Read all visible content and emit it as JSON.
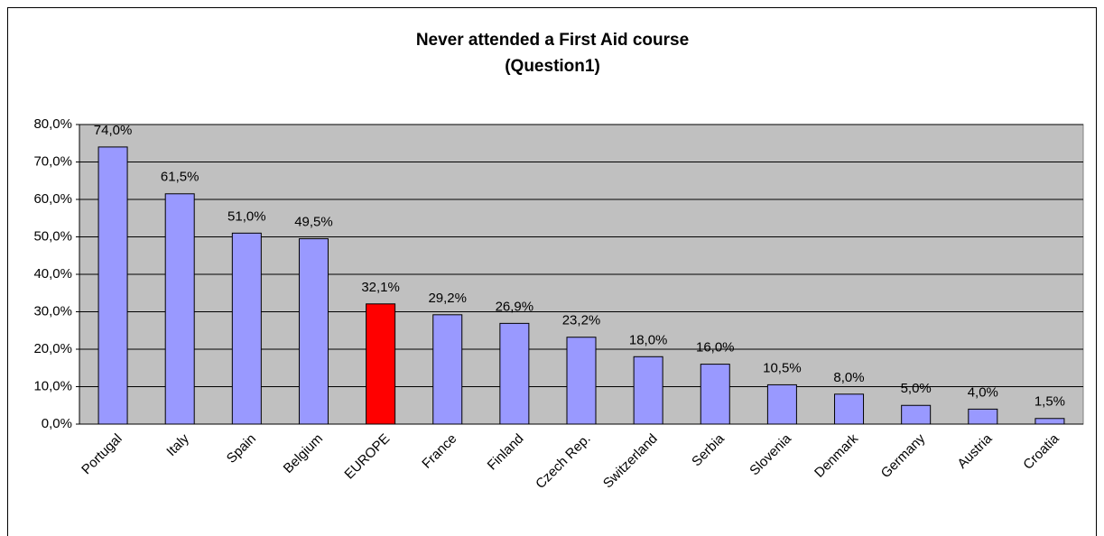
{
  "chart_data": {
    "type": "bar",
    "title": "Never attended a First Aid course",
    "subtitle": "(Question1)",
    "categories": [
      "Portugal",
      "Italy",
      "Spain",
      "Belgium",
      "EUROPE",
      "France",
      "Finland",
      "Czech Rep.",
      "Switzerland",
      "Serbia",
      "Slovenia",
      "Denmark",
      "Germany",
      "Austria",
      "Croatia"
    ],
    "values": [
      74.0,
      61.5,
      51.0,
      49.5,
      32.1,
      29.2,
      26.9,
      23.2,
      18.0,
      16.0,
      10.5,
      8.0,
      5.0,
      4.0,
      1.5
    ],
    "value_labels": [
      "74,0%",
      "61,5%",
      "51,0%",
      "49,5%",
      "32,1%",
      "29,2%",
      "26,9%",
      "23,2%",
      "18,0%",
      "16,0%",
      "10,5%",
      "8,0%",
      "5,0%",
      "4,0%",
      "1,5%"
    ],
    "colors": [
      "#9999ff",
      "#9999ff",
      "#9999ff",
      "#9999ff",
      "#ff0000",
      "#9999ff",
      "#9999ff",
      "#9999ff",
      "#9999ff",
      "#9999ff",
      "#9999ff",
      "#9999ff",
      "#9999ff",
      "#9999ff",
      "#9999ff"
    ],
    "ylim": [
      0,
      80
    ],
    "yticks": [
      {
        "value": 0,
        "label": "0,0%"
      },
      {
        "value": 10,
        "label": "10,0%"
      },
      {
        "value": 20,
        "label": "20,0%"
      },
      {
        "value": 30,
        "label": "30,0%"
      },
      {
        "value": 40,
        "label": "40,0%"
      },
      {
        "value": 50,
        "label": "50,0%"
      },
      {
        "value": 60,
        "label": "60,0%"
      },
      {
        "value": 70,
        "label": "70,0%"
      },
      {
        "value": 80,
        "label": "80,0%"
      }
    ],
    "grid": true,
    "plot_background": "#c0c0c0"
  }
}
